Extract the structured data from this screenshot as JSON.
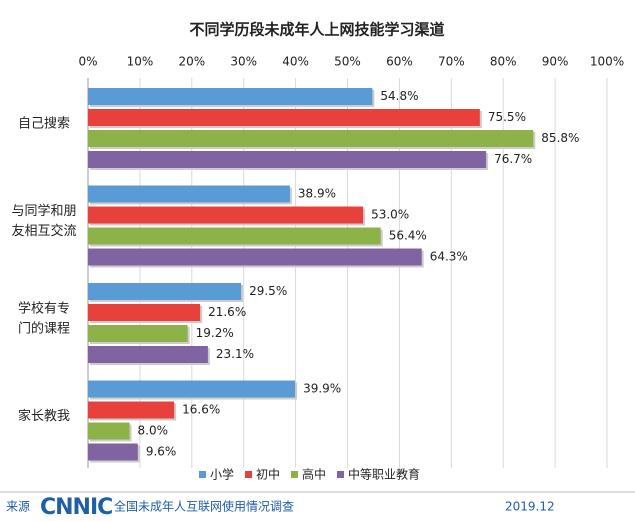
{
  "chart_data": {
    "type": "hbar",
    "title": "不同学历段未成年人上网技能学习渠道",
    "categories": [
      [
        "自己搜索"
      ],
      [
        "与同学和朋",
        "友相互交流"
      ],
      [
        "学校有专",
        "门的课程"
      ],
      [
        "家长教我"
      ]
    ],
    "series": [
      {
        "name": "小学",
        "color": "#5b9bd5",
        "values": [
          54.8,
          38.9,
          29.5,
          39.9
        ],
        "value_labels": [
          "54.8%",
          "38.9%",
          "29.5%",
          "39.9%"
        ]
      },
      {
        "name": "初中",
        "color": "#e8413c",
        "values": [
          75.5,
          53.0,
          21.6,
          16.6
        ],
        "value_labels": [
          "75.5%",
          "53.0%",
          "21.6%",
          "16.6%"
        ]
      },
      {
        "name": "高中",
        "color": "#8db249",
        "values": [
          85.8,
          56.4,
          19.2,
          8.0
        ],
        "value_labels": [
          "85.8%",
          "56.4%",
          "19.2%",
          "8.0%"
        ]
      },
      {
        "name": "中等职业教育",
        "color": "#8064a2",
        "values": [
          76.7,
          64.3,
          23.1,
          9.6
        ],
        "value_labels": [
          "76.7%",
          "64.3%",
          "23.1%",
          "9.6%"
        ]
      }
    ],
    "xlim": [
      0,
      100
    ],
    "xticks": [
      {
        "value": 0,
        "label": "0%"
      },
      {
        "value": 10,
        "label": "10%"
      },
      {
        "value": 20,
        "label": "20%"
      },
      {
        "value": 30,
        "label": "30%"
      },
      {
        "value": 40,
        "label": "40%"
      },
      {
        "value": 50,
        "label": "50%"
      },
      {
        "value": 60,
        "label": "60%"
      },
      {
        "value": 70,
        "label": "70%"
      },
      {
        "value": 80,
        "label": "80%"
      },
      {
        "value": 90,
        "label": "90%"
      },
      {
        "value": 100,
        "label": "100%"
      }
    ],
    "grid": true,
    "legend": "bottom"
  },
  "footer": {
    "source": "来源",
    "logo": "CNNIC",
    "survey": "全国未成年人互联网使用情况调查",
    "date": "2019.12"
  }
}
